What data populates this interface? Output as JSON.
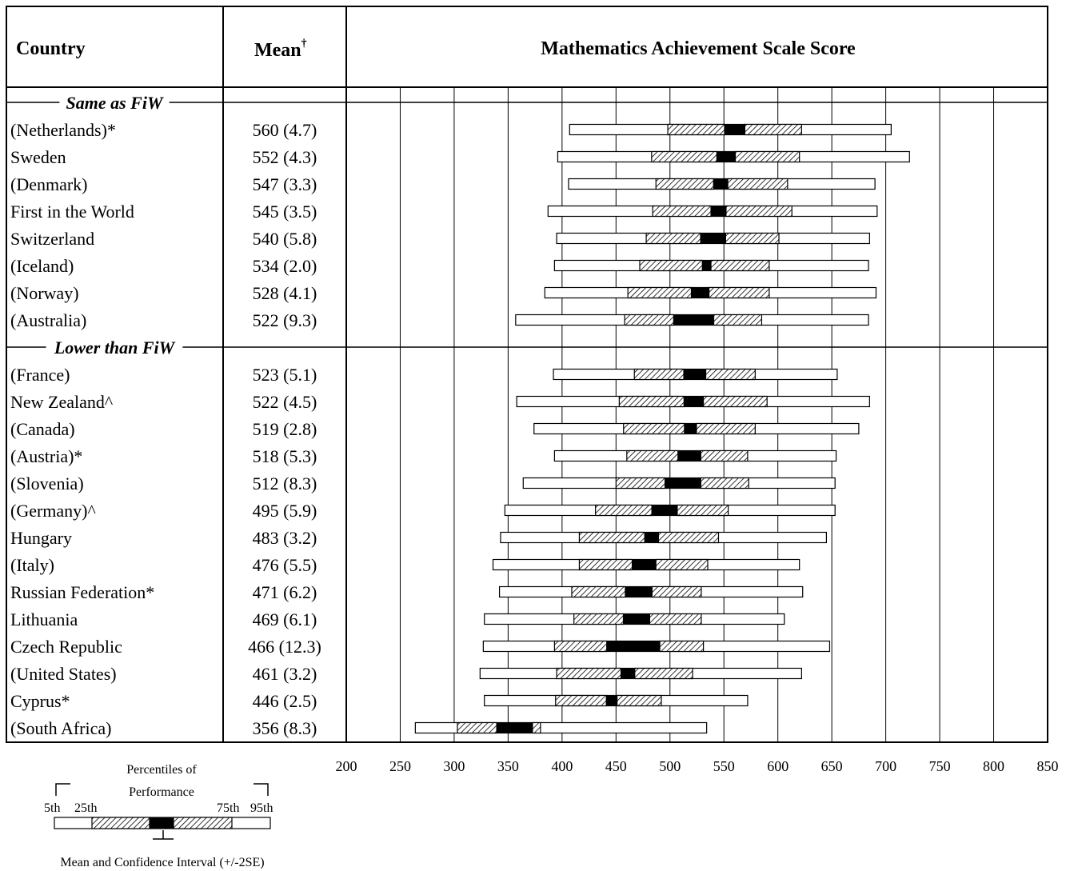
{
  "chart_data": {
    "type": "percentile-bar",
    "title": "Mathematics Achievement Scale Score",
    "columns": {
      "country": "Country",
      "mean": "Mean",
      "mean_mark": "†"
    },
    "x_axis": {
      "min": 200,
      "max": 850,
      "ticks": [
        200,
        250,
        300,
        350,
        400,
        450,
        500,
        550,
        600,
        650,
        700,
        750,
        800,
        850
      ]
    },
    "grid": true,
    "groups": [
      {
        "label": "Same as FiW",
        "rows": [
          {
            "country": "(Netherlands)*",
            "mean_text": "560 (4.7)",
            "mean": 560,
            "se": 4.7,
            "p5": 407,
            "p25": 498,
            "p75": 622,
            "p95": 705
          },
          {
            "country": "Sweden",
            "mean_text": "552 (4.3)",
            "mean": 552,
            "se": 4.3,
            "p5": 396,
            "p25": 483,
            "p75": 620,
            "p95": 722
          },
          {
            "country": "(Denmark)",
            "mean_text": "547 (3.3)",
            "mean": 547,
            "se": 3.3,
            "p5": 406,
            "p25": 487,
            "p75": 609,
            "p95": 690
          },
          {
            "country": "First in the World",
            "mean_text": "545 (3.5)",
            "mean": 545,
            "se": 3.5,
            "p5": 387,
            "p25": 484,
            "p75": 613,
            "p95": 692
          },
          {
            "country": "Switzerland",
            "mean_text": "540 (5.8)",
            "mean": 540,
            "se": 5.8,
            "p5": 395,
            "p25": 478,
            "p75": 601,
            "p95": 685
          },
          {
            "country": "(Iceland)",
            "mean_text": "534 (2.0)",
            "mean": 534,
            "se": 2.0,
            "p5": 393,
            "p25": 472,
            "p75": 592,
            "p95": 684
          },
          {
            "country": "(Norway)",
            "mean_text": "528 (4.1)",
            "mean": 528,
            "se": 4.1,
            "p5": 384,
            "p25": 461,
            "p75": 592,
            "p95": 691
          },
          {
            "country": "(Australia)",
            "mean_text": "522 (9.3)",
            "mean": 522,
            "se": 9.3,
            "p5": 357,
            "p25": 458,
            "p75": 585,
            "p95": 684
          }
        ]
      },
      {
        "label": "Lower than FiW",
        "rows": [
          {
            "country": "(France)",
            "mean_text": "523 (5.1)",
            "mean": 523,
            "se": 5.1,
            "p5": 392,
            "p25": 467,
            "p75": 579,
            "p95": 655
          },
          {
            "country": "New Zealand^",
            "mean_text": "522 (4.5)",
            "mean": 522,
            "se": 4.5,
            "p5": 358,
            "p25": 453,
            "p75": 590,
            "p95": 685
          },
          {
            "country": "(Canada)",
            "mean_text": "519 (2.8)",
            "mean": 519,
            "se": 2.8,
            "p5": 374,
            "p25": 457,
            "p75": 579,
            "p95": 675
          },
          {
            "country": "(Austria)*",
            "mean_text": "518 (5.3)",
            "mean": 518,
            "se": 5.3,
            "p5": 393,
            "p25": 460,
            "p75": 572,
            "p95": 654
          },
          {
            "country": "(Slovenia)",
            "mean_text": "512 (8.3)",
            "mean": 512,
            "se": 8.3,
            "p5": 364,
            "p25": 450,
            "p75": 573,
            "p95": 653
          },
          {
            "country": "(Germany)^",
            "mean_text": "495 (5.9)",
            "mean": 495,
            "se": 5.9,
            "p5": 347,
            "p25": 431,
            "p75": 554,
            "p95": 653
          },
          {
            "country": "Hungary",
            "mean_text": "483 (3.2)",
            "mean": 483,
            "se": 3.2,
            "p5": 343,
            "p25": 416,
            "p75": 545,
            "p95": 645
          },
          {
            "country": "(Italy)",
            "mean_text": "476 (5.5)",
            "mean": 476,
            "se": 5.5,
            "p5": 336,
            "p25": 416,
            "p75": 535,
            "p95": 620
          },
          {
            "country": "Russian Federation*",
            "mean_text": "471 (6.2)",
            "mean": 471,
            "se": 6.2,
            "p5": 342,
            "p25": 409,
            "p75": 529,
            "p95": 623
          },
          {
            "country": "Lithuania",
            "mean_text": "469 (6.1)",
            "mean": 469,
            "se": 6.1,
            "p5": 328,
            "p25": 411,
            "p75": 529,
            "p95": 606
          },
          {
            "country": "Czech Republic",
            "mean_text": "466 (12.3)",
            "mean": 466,
            "se": 12.3,
            "p5": 327,
            "p25": 393,
            "p75": 531,
            "p95": 648
          },
          {
            "country": "(United States)",
            "mean_text": "461 (3.2)",
            "mean": 461,
            "se": 3.2,
            "p5": 324,
            "p25": 395,
            "p75": 521,
            "p95": 622
          },
          {
            "country": "Cyprus*",
            "mean_text": "446 (2.5)",
            "mean": 446,
            "se": 2.5,
            "p5": 328,
            "p25": 394,
            "p75": 492,
            "p95": 572
          },
          {
            "country": "(South Africa)",
            "mean_text": "356 (8.3)",
            "mean": 356,
            "se": 8.3,
            "p5": 264,
            "p25": 303,
            "p75": 380,
            "p95": 534
          }
        ]
      }
    ],
    "legend": {
      "title_line1": "Percentiles of",
      "title_line2": "Performance",
      "p5": "5th",
      "p25": "25th",
      "p75": "75th",
      "p95": "95th",
      "ci_label": "Mean and Confidence Interval (+/-2SE)"
    }
  }
}
